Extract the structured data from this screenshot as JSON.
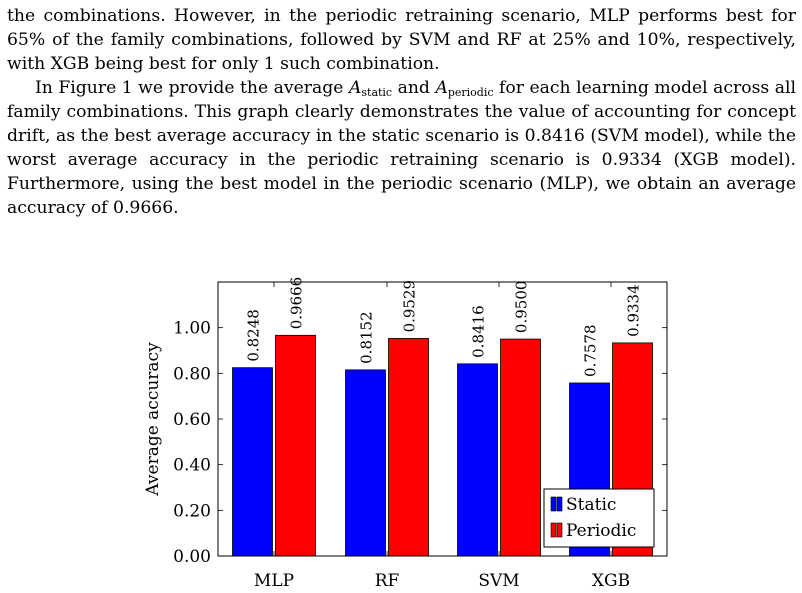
{
  "paragraph1": {
    "text": "the combinations. However, in the periodic retraining scenario, MLP performs best for 65% of the family combinations, followed by SVM and RF at 25% and 10%, respectively, with XGB being best for only 1 such combination."
  },
  "paragraph2": {
    "part1": "In Figure 1 we provide the average ",
    "var_a": "A",
    "sub_static": "static",
    "part2": " and ",
    "sub_periodic": "periodic",
    "part3": " for each learning model across all family combinations. This graph clearly demonstrates the value of accounting for concept drift, as the best average accuracy in the static scenario is 0.8416 (SVM model), while the worst average accuracy in the periodic retraining scenario is 0.9334 (XGB model). Furthermore, using the best model in the periodic scenario (MLP), we obtain an average accuracy of 0.9666."
  },
  "chart_data": {
    "type": "bar",
    "categories": [
      "MLP",
      "RF",
      "SVM",
      "XGB"
    ],
    "series": [
      {
        "name": "Static",
        "color": "#0000ff",
        "values": [
          0.8248,
          0.8152,
          0.8416,
          0.7578
        ],
        "labels": [
          "0.8248",
          "0.8152",
          "0.8416",
          "0.7578"
        ]
      },
      {
        "name": "Periodic",
        "color": "#ff0000",
        "values": [
          0.9666,
          0.9529,
          0.95,
          0.9334
        ],
        "labels": [
          "0.9666",
          "0.9529",
          "0.9500",
          "0.9334"
        ]
      }
    ],
    "ylabel": "Average accuracy",
    "ylim": [
      0,
      1.2
    ],
    "yticks": [
      0,
      0.2,
      0.4,
      0.6,
      0.8,
      1.0
    ],
    "ytick_labels": [
      "0.00",
      "0.20",
      "0.40",
      "0.60",
      "0.80",
      "1.00"
    ],
    "legend_position": "bottom-right"
  }
}
